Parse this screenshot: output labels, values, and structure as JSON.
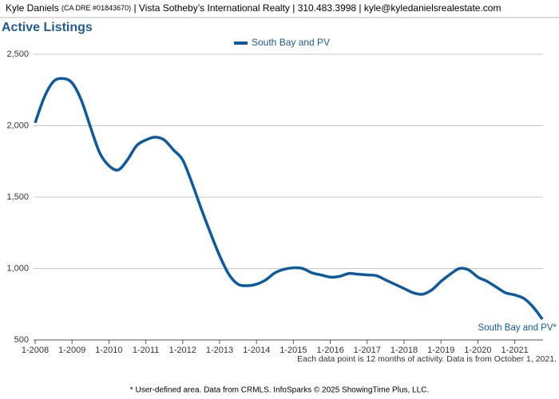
{
  "header": {
    "name": "Kyle Daniels",
    "license": "(CA DRE #01843670)",
    "rest": "| Vista Sotheby’s International Realty | 310.483.3998 | kyle@kyledanielsrealestate.com"
  },
  "chart_data": {
    "type": "line",
    "title": "Active Listings",
    "categories": [
      "1-2008",
      null,
      null,
      null,
      "1-2009",
      null,
      null,
      null,
      "1-2010",
      null,
      null,
      null,
      "1-2011",
      null,
      null,
      null,
      "1-2012",
      null,
      null,
      null,
      "1-2013",
      null,
      null,
      null,
      "1-2014",
      null,
      null,
      null,
      "1-2015",
      null,
      null,
      null,
      "1-2016",
      null,
      null,
      null,
      "1-2017",
      null,
      null,
      null,
      "1-2018",
      null,
      null,
      null,
      "1-2019",
      null,
      null,
      null,
      "1-2020",
      null,
      null,
      null,
      "1-2021",
      null,
      null,
      null
    ],
    "series": [
      {
        "name": "South Bay and PV",
        "color": "#0d5aa0",
        "values": [
          2020,
          2200,
          2310,
          2330,
          2300,
          2180,
          1990,
          1810,
          1720,
          1690,
          1760,
          1860,
          1900,
          1920,
          1900,
          1830,
          1760,
          1600,
          1420,
          1250,
          1090,
          960,
          890,
          880,
          890,
          920,
          970,
          995,
          1005,
          1000,
          970,
          955,
          940,
          945,
          965,
          960,
          955,
          950,
          920,
          890,
          860,
          830,
          820,
          850,
          910,
          960,
          1000,
          990,
          940,
          910,
          870,
          830,
          815,
          790,
          730,
          645
        ]
      }
    ],
    "end_label": "South Bay and PV*",
    "ylim": [
      500,
      2500
    ],
    "yticks": [
      500,
      {
        "value": 1000,
        "label": "1,000"
      },
      {
        "value": 1500,
        "label": "1,500"
      },
      {
        "value": 2000,
        "label": "2,000"
      },
      {
        "value": 2500,
        "label": "2,500"
      }
    ],
    "grid": true,
    "note": "Each data point is 12 months of activity. Data is from October 1, 2021."
  },
  "footer": "* User-defined area. Data from CRMLS. InfoSparks © 2025 ShowingTime Plus, LLC."
}
